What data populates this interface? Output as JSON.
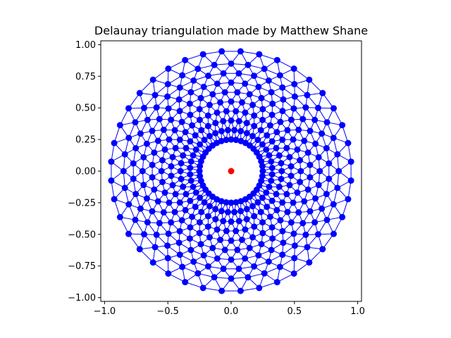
{
  "chart_data": {
    "type": "scatter",
    "title": "Delaunay triangulation made by Matthew Shane",
    "xlabel": "",
    "ylabel": "",
    "xlim": [
      -1.03,
      1.03
    ],
    "ylim": [
      -1.03,
      1.03
    ],
    "x_ticks": [
      "−1.0",
      "−0.5",
      "0.0",
      "0.5",
      "1.0"
    ],
    "x_tick_values": [
      -1.0,
      -0.5,
      0.0,
      0.5,
      1.0
    ],
    "y_ticks": [
      "1.00",
      "0.75",
      "0.50",
      "0.25",
      "0.00",
      "−0.25",
      "−0.50",
      "−0.75",
      "−1.00"
    ],
    "y_tick_values": [
      1.0,
      0.75,
      0.5,
      0.25,
      0.0,
      -0.25,
      -0.5,
      -0.75,
      -1.0
    ],
    "grid": false,
    "aspect": "equal",
    "mesh_color": "#0000ff",
    "point_color": "#0000ff",
    "center_point_color": "#ff0000",
    "center_point": [
      0.0,
      0.0
    ],
    "rings": [
      {
        "radius": 0.25,
        "count": 40
      },
      {
        "radius": 0.325,
        "count": 40
      },
      {
        "radius": 0.4,
        "count": 40
      },
      {
        "radius": 0.475,
        "count": 40
      },
      {
        "radius": 0.55,
        "count": 40
      },
      {
        "radius": 0.625,
        "count": 40
      },
      {
        "radius": 0.7,
        "count": 40
      },
      {
        "radius": 0.775,
        "count": 40
      },
      {
        "radius": 0.85,
        "count": 40
      },
      {
        "radius": 0.95,
        "count": 40
      }
    ]
  }
}
